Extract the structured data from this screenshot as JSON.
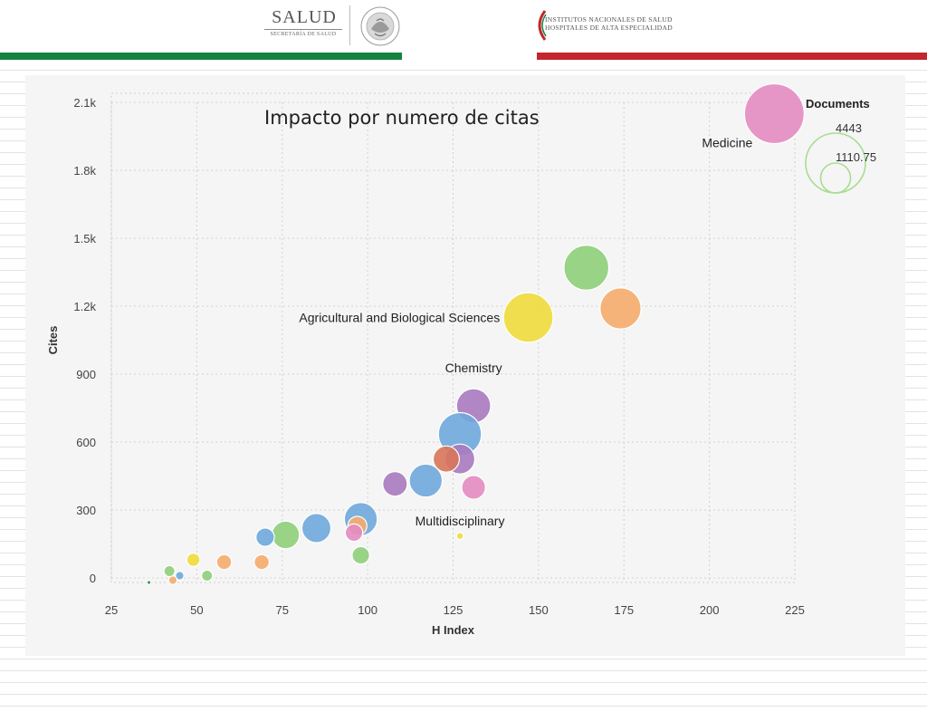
{
  "header": {
    "salud_logo": {
      "name": "SALUD",
      "subtitle": "SECRETARÍA DE SALUD",
      "seal_text": "ESTADOS UNIDOS MEXICANOS"
    },
    "institutes_logo": {
      "line1": "INSTITUTOS NACIONALES DE SALUD",
      "line2": "HOSPITALES DE ALTA ESPECIALIDAD"
    },
    "colors": {
      "green": "#13833f",
      "red": "#c1272d"
    }
  },
  "chart_data": {
    "type": "scatter",
    "title": "Impacto por numero de citas",
    "xlabel": "H Index",
    "ylabel": "Cites",
    "xlim": [
      25,
      225
    ],
    "ylim": [
      0,
      2100
    ],
    "x_ticks": [
      25,
      50,
      75,
      100,
      125,
      150,
      175,
      200,
      225
    ],
    "x_tick_labels": [
      "25",
      "50",
      "75",
      "100",
      "125",
      "150",
      "175",
      "200",
      "225"
    ],
    "y_ticks": [
      0,
      300,
      600,
      900,
      1200,
      1500,
      1800,
      2100
    ],
    "y_tick_labels": [
      "0",
      "300",
      "600",
      "900",
      "1.2k",
      "1.5k",
      "1.8k",
      "2.1k"
    ],
    "grid": true,
    "size_legend": {
      "title": "Documents",
      "values": [
        4443,
        1110.75
      ],
      "labels": [
        "4443",
        "1110.75"
      ],
      "position": "top-right"
    },
    "bubble_labels": [
      "Medicine",
      "Agricultural and Biological Sciences",
      "Chemistry",
      "Multidisciplinary"
    ],
    "points": [
      {
        "x": 219,
        "y": 2050,
        "documents": 4443,
        "color": "#e38cc1",
        "label": "Medicine",
        "label_side": "left"
      },
      {
        "x": 164,
        "y": 1370,
        "documents": 2500,
        "color": "#8fcf7a"
      },
      {
        "x": 174,
        "y": 1190,
        "documents": 2100,
        "color": "#f6ac6b"
      },
      {
        "x": 147,
        "y": 1150,
        "documents": 3050,
        "color": "#f0dc3c",
        "label": "Agricultural and Biological Sciences",
        "label_side": "left"
      },
      {
        "x": 131,
        "y": 760,
        "documents": 1450,
        "color": "#a87abf",
        "label": "Chemistry",
        "label_side": "above"
      },
      {
        "x": 127,
        "y": 635,
        "documents": 2300,
        "color": "#6fa9dc"
      },
      {
        "x": 127,
        "y": 525,
        "documents": 1100,
        "color": "#a87abf"
      },
      {
        "x": 123,
        "y": 525,
        "documents": 850,
        "color": "#d9765a"
      },
      {
        "x": 131,
        "y": 400,
        "documents": 700,
        "color": "#e38cc1"
      },
      {
        "x": 117,
        "y": 430,
        "documents": 1350,
        "color": "#6fa9dc"
      },
      {
        "x": 108,
        "y": 415,
        "documents": 750,
        "color": "#a87abf"
      },
      {
        "x": 98,
        "y": 260,
        "documents": 1350,
        "color": "#6fa9dc"
      },
      {
        "x": 97,
        "y": 230,
        "documents": 450,
        "color": "#f6ac6b"
      },
      {
        "x": 96,
        "y": 200,
        "documents": 380,
        "color": "#e38cc1"
      },
      {
        "x": 98,
        "y": 100,
        "documents": 380,
        "color": "#8fcf7a"
      },
      {
        "x": 85,
        "y": 220,
        "documents": 1050,
        "color": "#6fa9dc"
      },
      {
        "x": 76,
        "y": 190,
        "documents": 950,
        "color": "#8fcf7a"
      },
      {
        "x": 70,
        "y": 180,
        "documents": 420,
        "color": "#6fa9dc"
      },
      {
        "x": 69,
        "y": 70,
        "documents": 280,
        "color": "#f6ac6b"
      },
      {
        "x": 58,
        "y": 70,
        "documents": 280,
        "color": "#f6ac6b"
      },
      {
        "x": 53,
        "y": 10,
        "documents": 150,
        "color": "#8fcf7a"
      },
      {
        "x": 49,
        "y": 80,
        "documents": 220,
        "color": "#f0dc3c"
      },
      {
        "x": 45,
        "y": 10,
        "documents": 90,
        "color": "#6fa9dc"
      },
      {
        "x": 43,
        "y": -10,
        "documents": 90,
        "color": "#f6ac6b"
      },
      {
        "x": 42,
        "y": 30,
        "documents": 150,
        "color": "#8fcf7a"
      },
      {
        "x": 36,
        "y": -20,
        "documents": 15,
        "color": "#2a9a4a"
      },
      {
        "x": 127,
        "y": 185,
        "documents": 60,
        "color": "#f0dc3c",
        "label": "Multidisciplinary",
        "label_side": "above"
      }
    ]
  }
}
